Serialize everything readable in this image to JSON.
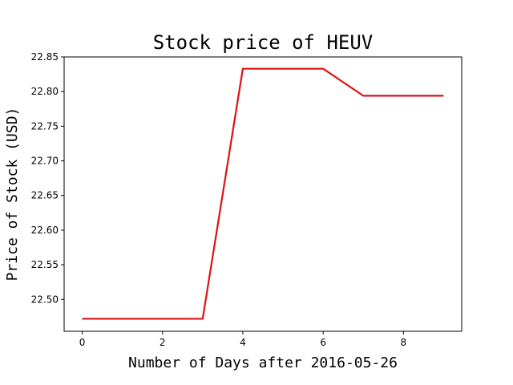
{
  "chart_data": {
    "type": "line",
    "title": "Stock price of HEUV",
    "xlabel": "Number of Days after 2016-05-26",
    "ylabel": "Price of Stock (USD)",
    "x": [
      0,
      1,
      2,
      3,
      4,
      5,
      6,
      7,
      8,
      9
    ],
    "series": [
      {
        "values": [
          22.472,
          22.472,
          22.472,
          22.472,
          22.833,
          22.833,
          22.833,
          22.794,
          22.794,
          22.794
        ],
        "color": "#dd1111"
      }
    ],
    "xlim": [
      -0.45,
      9.45
    ],
    "ylim": [
      22.454,
      22.85
    ],
    "xticks": [
      0,
      2,
      4,
      6,
      8
    ],
    "yticks": [
      22.5,
      22.55,
      22.6,
      22.65,
      22.7,
      22.75,
      22.8,
      22.85
    ],
    "ytick_labels": [
      "22.50",
      "22.55",
      "22.60",
      "22.65",
      "22.70",
      "22.75",
      "22.80",
      "22.85"
    ],
    "grid": false,
    "legend": false
  }
}
